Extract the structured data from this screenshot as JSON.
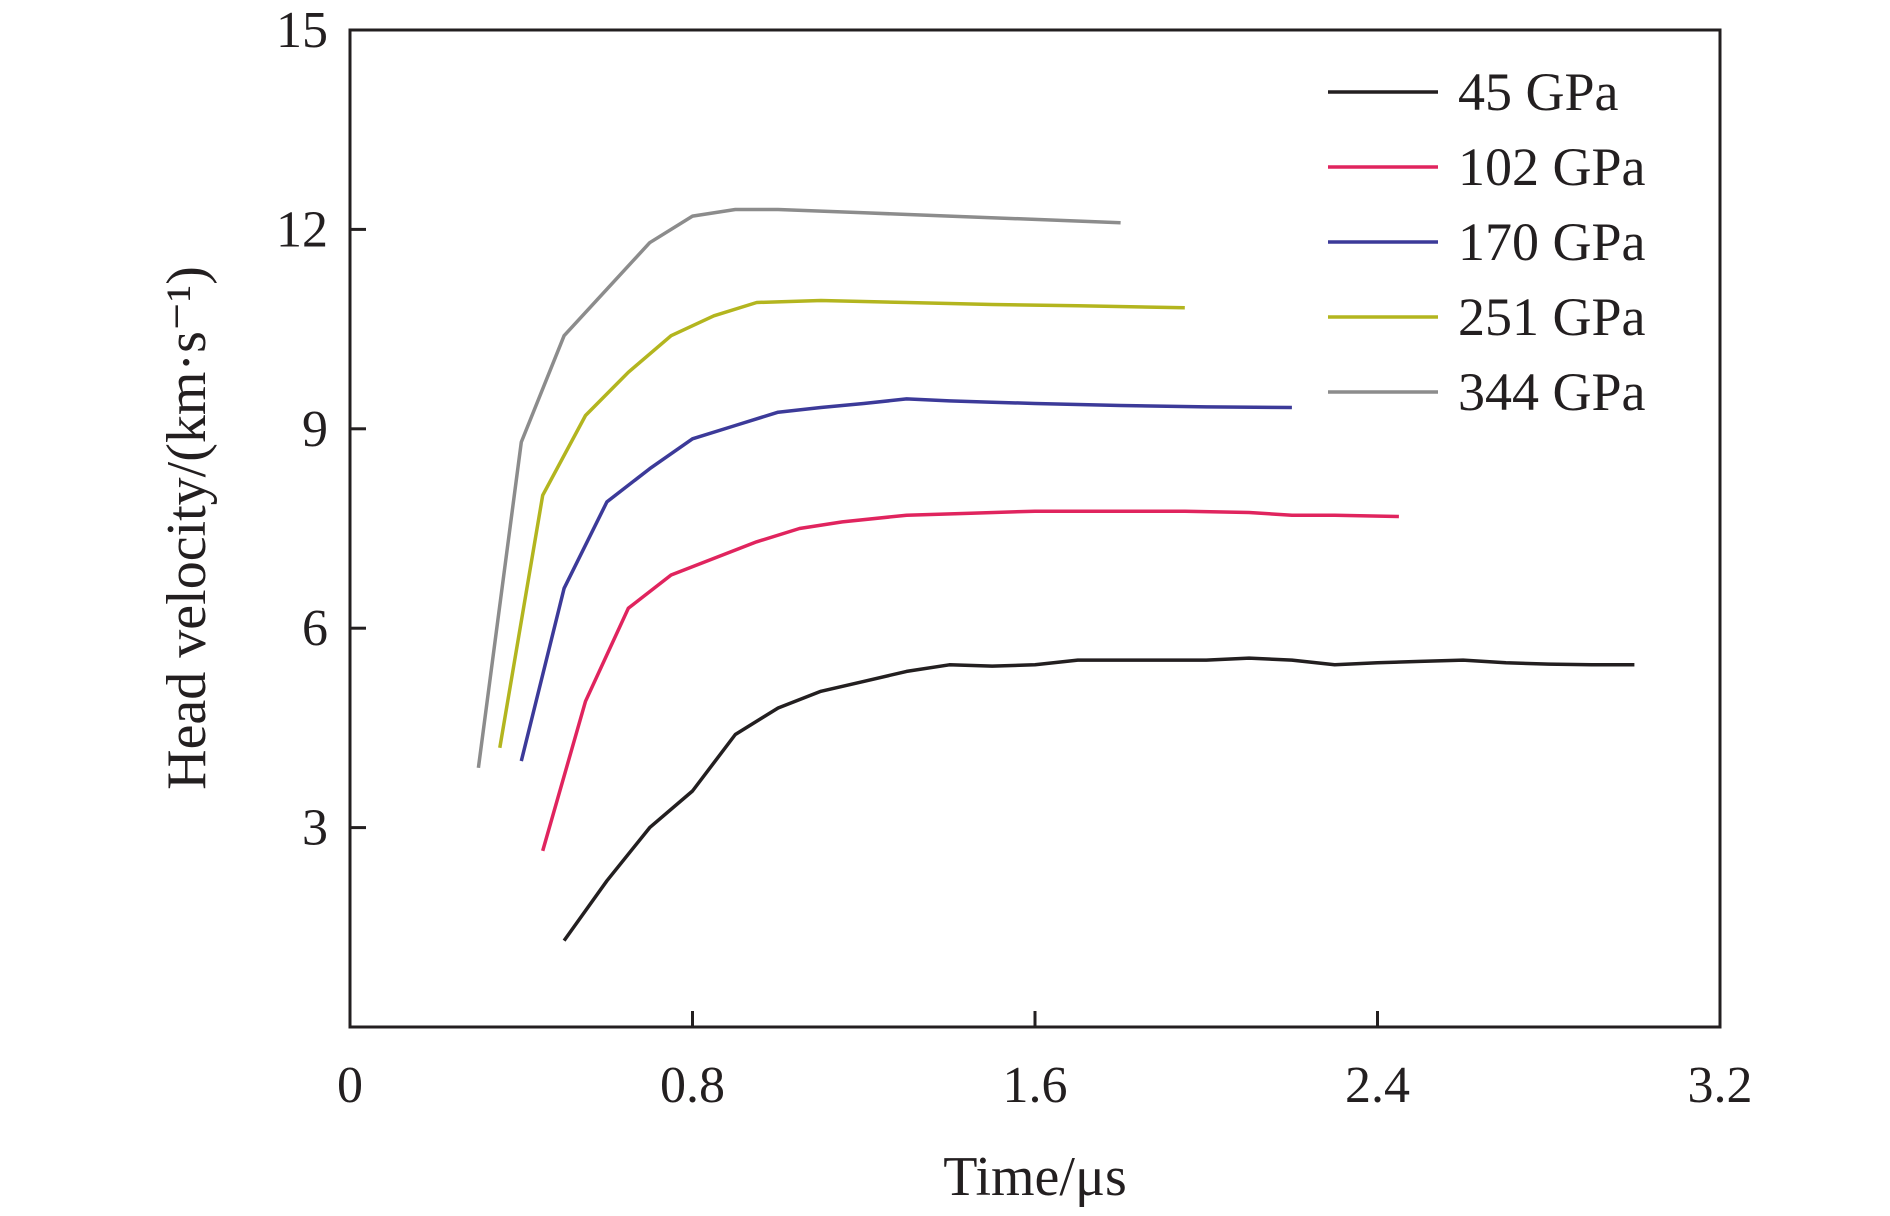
{
  "chart_data": {
    "type": "line",
    "title": "",
    "xlabel": "Time/μs",
    "ylabel": "Head velocity/(km·s⁻¹)",
    "xlim": [
      0,
      3.2
    ],
    "ylim": [
      0,
      15
    ],
    "xticks": [
      "0",
      "0.8",
      "1.6",
      "2.4",
      "3.2"
    ],
    "yticks": [
      "3",
      "6",
      "9",
      "12",
      "15"
    ],
    "grid": false,
    "legend_position": "top-right",
    "series": [
      {
        "name": "45 GPa",
        "color": "#231f20",
        "points": [
          [
            0.5,
            1.3
          ],
          [
            0.6,
            2.2
          ],
          [
            0.7,
            3.0
          ],
          [
            0.8,
            3.55
          ],
          [
            0.9,
            4.4
          ],
          [
            1.0,
            4.8
          ],
          [
            1.1,
            5.05
          ],
          [
            1.2,
            5.2
          ],
          [
            1.3,
            5.35
          ],
          [
            1.4,
            5.45
          ],
          [
            1.5,
            5.43
          ],
          [
            1.6,
            5.45
          ],
          [
            1.7,
            5.52
          ],
          [
            1.8,
            5.52
          ],
          [
            1.9,
            5.52
          ],
          [
            2.0,
            5.52
          ],
          [
            2.1,
            5.55
          ],
          [
            2.2,
            5.52
          ],
          [
            2.3,
            5.45
          ],
          [
            2.4,
            5.48
          ],
          [
            2.5,
            5.5
          ],
          [
            2.6,
            5.52
          ],
          [
            2.7,
            5.48
          ],
          [
            2.8,
            5.46
          ],
          [
            2.9,
            5.45
          ],
          [
            3.0,
            5.45
          ]
        ]
      },
      {
        "name": "102 GPa",
        "color": "#e0245e",
        "points": [
          [
            0.45,
            2.65
          ],
          [
            0.55,
            4.9
          ],
          [
            0.65,
            6.3
          ],
          [
            0.75,
            6.8
          ],
          [
            0.85,
            7.05
          ],
          [
            0.95,
            7.3
          ],
          [
            1.05,
            7.5
          ],
          [
            1.15,
            7.6
          ],
          [
            1.3,
            7.7
          ],
          [
            1.45,
            7.73
          ],
          [
            1.6,
            7.76
          ],
          [
            1.8,
            7.76
          ],
          [
            1.95,
            7.76
          ],
          [
            2.1,
            7.74
          ],
          [
            2.2,
            7.7
          ],
          [
            2.3,
            7.7
          ],
          [
            2.45,
            7.68
          ]
        ]
      },
      {
        "name": "170 GPa",
        "color": "#3c3a99",
        "points": [
          [
            0.4,
            4.0
          ],
          [
            0.5,
            6.6
          ],
          [
            0.6,
            7.9
          ],
          [
            0.7,
            8.4
          ],
          [
            0.8,
            8.85
          ],
          [
            0.9,
            9.05
          ],
          [
            1.0,
            9.25
          ],
          [
            1.1,
            9.32
          ],
          [
            1.2,
            9.38
          ],
          [
            1.3,
            9.45
          ],
          [
            1.4,
            9.42
          ],
          [
            1.5,
            9.4
          ],
          [
            1.6,
            9.38
          ],
          [
            1.8,
            9.35
          ],
          [
            2.0,
            9.33
          ],
          [
            2.2,
            9.32
          ]
        ]
      },
      {
        "name": "251 GPa",
        "color": "#b3b51f",
        "points": [
          [
            0.35,
            4.2
          ],
          [
            0.45,
            8.0
          ],
          [
            0.55,
            9.2
          ],
          [
            0.65,
            9.85
          ],
          [
            0.75,
            10.4
          ],
          [
            0.85,
            10.7
          ],
          [
            0.95,
            10.9
          ],
          [
            1.1,
            10.93
          ],
          [
            1.3,
            10.9
          ],
          [
            1.5,
            10.87
          ],
          [
            1.7,
            10.85
          ],
          [
            1.95,
            10.82
          ]
        ]
      },
      {
        "name": "344 GPa",
        "color": "#8c8c8c",
        "points": [
          [
            0.3,
            3.9
          ],
          [
            0.4,
            8.8
          ],
          [
            0.5,
            10.4
          ],
          [
            0.6,
            11.1
          ],
          [
            0.7,
            11.8
          ],
          [
            0.8,
            12.2
          ],
          [
            0.9,
            12.3
          ],
          [
            1.0,
            12.3
          ],
          [
            1.2,
            12.25
          ],
          [
            1.4,
            12.2
          ],
          [
            1.6,
            12.15
          ],
          [
            1.8,
            12.1
          ]
        ]
      }
    ]
  }
}
